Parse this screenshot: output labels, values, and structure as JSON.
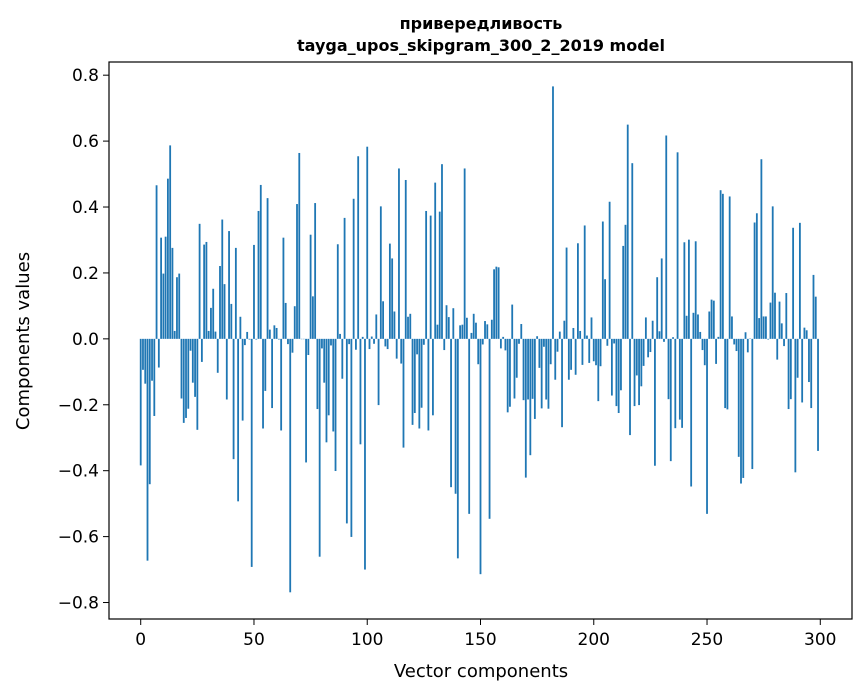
{
  "chart_data": {
    "type": "bar",
    "title": "привередливость",
    "subtitle": "tayga_upos_skipgram_300_2_2019 model",
    "xlabel": "Vector components",
    "ylabel": "Components values",
    "xlim": [
      -14,
      314
    ],
    "ylim": [
      -0.85,
      0.84
    ],
    "xticks": [
      0,
      50,
      100,
      150,
      200,
      250,
      300
    ],
    "yticks": [
      -0.8,
      -0.6,
      -0.4,
      -0.2,
      0.0,
      0.2,
      0.4,
      0.6,
      0.8
    ],
    "xtick_labels": [
      "0",
      "50",
      "100",
      "150",
      "200",
      "250",
      "300"
    ],
    "ytick_labels": [
      "−0.8",
      "−0.6",
      "−0.4",
      "−0.2",
      "0.0",
      "0.2",
      "0.4",
      "0.6",
      "0.8"
    ],
    "bar_color": "#1f77b4",
    "series": [
      {
        "name": "привередливость",
        "values": [
          -0.384,
          -0.094,
          -0.136,
          -0.673,
          -0.441,
          -0.127,
          -0.234,
          0.466,
          -0.087,
          0.307,
          0.198,
          0.31,
          0.486,
          0.587,
          0.276,
          0.024,
          0.187,
          0.198,
          -0.181,
          -0.255,
          -0.24,
          -0.212,
          -0.036,
          -0.133,
          -0.176,
          -0.276,
          0.349,
          -0.07,
          0.286,
          0.294,
          0.024,
          0.094,
          0.152,
          0.022,
          -0.103,
          0.221,
          0.362,
          0.166,
          -0.184,
          0.327,
          0.106,
          -0.365,
          0.276,
          -0.493,
          0.067,
          -0.248,
          -0.019,
          0.021,
          -0.002,
          -0.692,
          0.285,
          -0.002,
          0.388,
          0.467,
          -0.272,
          -0.158,
          0.427,
          0.028,
          -0.21,
          0.041,
          0.033,
          -0.002,
          -0.278,
          0.307,
          0.109,
          -0.016,
          -0.769,
          -0.042,
          0.099,
          0.409,
          0.564,
          -0.001,
          -0.001,
          -0.375,
          -0.049,
          0.316,
          0.129,
          0.412,
          -0.213,
          -0.661,
          -0.029,
          -0.133,
          -0.314,
          -0.232,
          -0.02,
          -0.281,
          -0.401,
          0.287,
          0.015,
          -0.121,
          0.367,
          -0.56,
          -0.016,
          -0.601,
          0.425,
          -0.033,
          0.554,
          -0.32,
          0.006,
          -0.7,
          0.583,
          -0.031,
          0.007,
          -0.015,
          0.074,
          -0.201,
          0.402,
          0.114,
          -0.023,
          -0.031,
          0.289,
          0.244,
          0.083,
          -0.06,
          0.517,
          -0.075,
          -0.33,
          0.482,
          0.067,
          0.076,
          -0.261,
          -0.225,
          -0.047,
          -0.272,
          -0.209,
          -0.018,
          0.388,
          -0.278,
          0.374,
          -0.232,
          0.474,
          0.043,
          0.386,
          0.53,
          -0.034,
          0.102,
          0.066,
          -0.45,
          0.093,
          -0.47,
          -0.666,
          0.041,
          0.043,
          0.517,
          0.064,
          -0.531,
          0.018,
          0.076,
          0.049,
          -0.077,
          -0.714,
          -0.017,
          0.054,
          0.044,
          -0.546,
          0.058,
          0.211,
          0.219,
          0.217,
          -0.029,
          0.006,
          -0.035,
          -0.223,
          -0.206,
          0.104,
          -0.181,
          -0.118,
          -0.015,
          0.045,
          -0.186,
          -0.421,
          -0.184,
          -0.353,
          -0.182,
          -0.243,
          0.008,
          -0.088,
          -0.211,
          -0.024,
          -0.184,
          -0.212,
          -0.077,
          0.766,
          -0.124,
          -0.039,
          0.022,
          -0.268,
          0.055,
          0.277,
          -0.124,
          -0.094,
          0.033,
          -0.109,
          0.29,
          0.024,
          -0.079,
          0.344,
          0.01,
          -0.073,
          0.065,
          -0.068,
          -0.08,
          -0.189,
          -0.083,
          0.356,
          0.181,
          -0.021,
          0.416,
          -0.172,
          -0.014,
          -0.204,
          -0.225,
          -0.156,
          0.282,
          0.346,
          0.65,
          -0.292,
          0.533,
          -0.204,
          -0.111,
          -0.201,
          -0.144,
          -0.082,
          0.065,
          -0.056,
          -0.04,
          0.055,
          -0.385,
          0.187,
          0.023,
          0.244,
          -0.009,
          0.617,
          -0.183,
          -0.371,
          0.005,
          -0.271,
          0.566,
          -0.245,
          -0.27,
          0.293,
          0.07,
          0.301,
          -0.448,
          0.079,
          0.296,
          0.074,
          0.021,
          -0.034,
          -0.08,
          -0.531,
          0.083,
          0.119,
          0.116,
          -0.076,
          0.006,
          0.451,
          0.44,
          -0.21,
          -0.214,
          0.432,
          0.068,
          -0.017,
          -0.037,
          -0.358,
          -0.439,
          -0.422,
          0.02,
          -0.041,
          0.001,
          -0.395,
          0.353,
          0.381,
          0.063,
          0.545,
          0.068,
          0.068,
          -0.002,
          0.11,
          0.402,
          0.14,
          -0.063,
          0.113,
          0.047,
          -0.022,
          0.139,
          -0.213,
          -0.183,
          0.337,
          -0.405,
          -0.118,
          0.352,
          -0.193,
          0.034,
          0.026,
          -0.131,
          -0.21,
          0.194,
          0.128,
          -0.34
        ]
      }
    ]
  }
}
